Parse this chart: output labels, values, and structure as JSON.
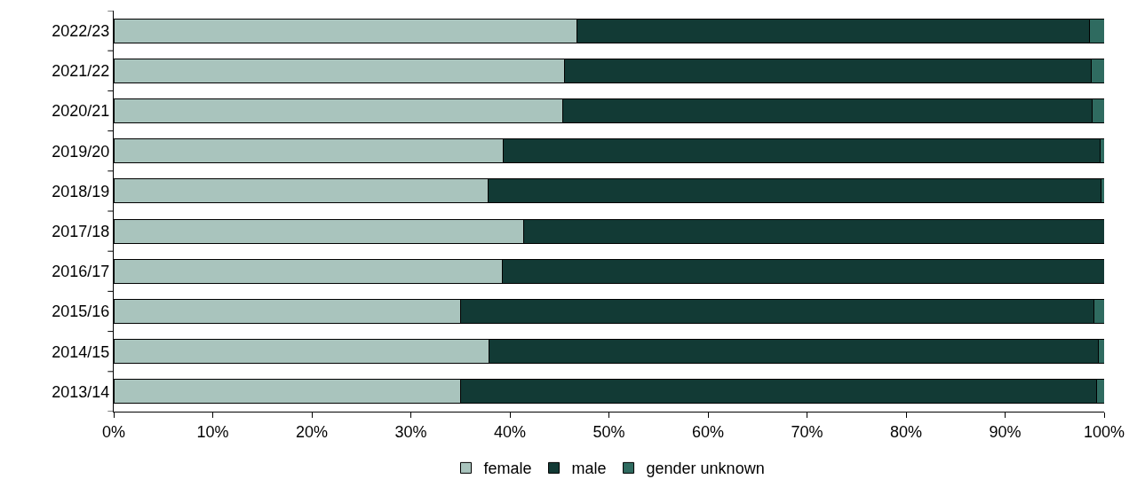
{
  "chart_data": {
    "type": "bar",
    "orientation": "horizontal",
    "stacked": true,
    "categories": [
      "2022/23",
      "2021/22",
      "2020/21",
      "2019/20",
      "2018/19",
      "2017/18",
      "2016/17",
      "2015/16",
      "2014/15",
      "2013/14"
    ],
    "series": [
      {
        "name": "female",
        "color": "#a9c4bd",
        "values": [
          46.8,
          45.5,
          45.3,
          39.3,
          37.8,
          41.4,
          39.2,
          35.0,
          37.9,
          35.0
        ]
      },
      {
        "name": "male",
        "color": "#123a35",
        "values": [
          51.7,
          53.2,
          53.5,
          60.3,
          61.9,
          58.6,
          60.8,
          64.0,
          61.5,
          64.2
        ]
      },
      {
        "name": "gender unknown",
        "color": "#2f6b60",
        "values": [
          1.5,
          1.3,
          1.2,
          0.4,
          0.3,
          0,
          0,
          1.0,
          0.6,
          0.8
        ]
      }
    ],
    "xlim": [
      0,
      100
    ],
    "xticks": [
      {
        "value": 0,
        "label": "0%"
      },
      {
        "value": 10,
        "label": "10%"
      },
      {
        "value": 20,
        "label": "20%"
      },
      {
        "value": 30,
        "label": "30%"
      },
      {
        "value": 40,
        "label": "40%"
      },
      {
        "value": 50,
        "label": "50%"
      },
      {
        "value": 60,
        "label": "60%"
      },
      {
        "value": 70,
        "label": "70%"
      },
      {
        "value": 80,
        "label": "80%"
      },
      {
        "value": 90,
        "label": "90%"
      },
      {
        "value": 100,
        "label": "100%"
      }
    ],
    "legend": "bottom"
  }
}
